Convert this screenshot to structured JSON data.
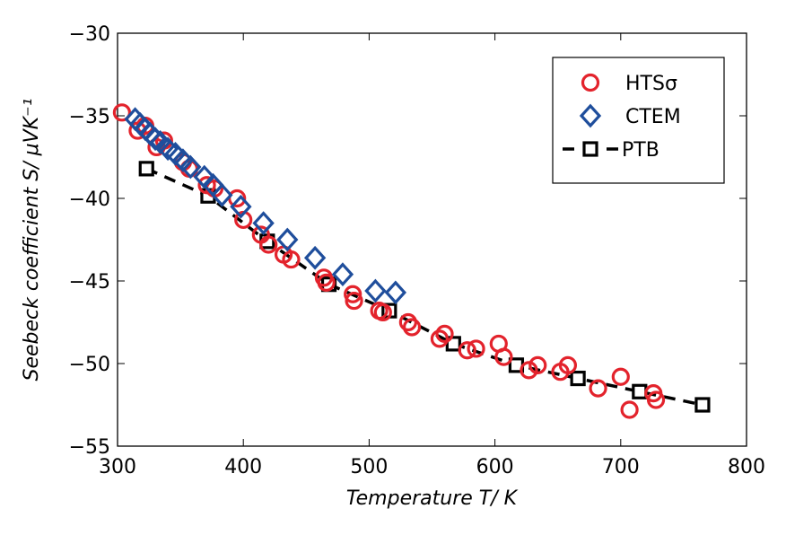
{
  "chart_data": {
    "type": "scatter",
    "title": "",
    "xlabel": "Temperature T/ K",
    "ylabel": "Seebeck coefficient S/ μVK⁻¹",
    "xlim": [
      300,
      800
    ],
    "ylim": [
      -55,
      -30
    ],
    "xticks": [
      300,
      400,
      500,
      600,
      700,
      800
    ],
    "yticks": [
      -30,
      -35,
      -40,
      -45,
      -50,
      -55
    ],
    "xtick_labels": [
      "300",
      "400",
      "500",
      "600",
      "700",
      "800"
    ],
    "ytick_labels": [
      "−30",
      "−35",
      "−40",
      "−45",
      "−50",
      "−55"
    ],
    "grid": false,
    "legend_position": "top-right",
    "series": [
      {
        "name": "HTSσ",
        "marker": "circle",
        "line": "none",
        "color": "#e3232c",
        "points": [
          [
            303.5,
            -34.8
          ],
          [
            316,
            -35.9
          ],
          [
            322,
            -35.6
          ],
          [
            331,
            -36.9
          ],
          [
            337,
            -36.5
          ],
          [
            352,
            -37.8
          ],
          [
            357,
            -38.2
          ],
          [
            371,
            -39.2
          ],
          [
            377,
            -39.4
          ],
          [
            395,
            -40.0
          ],
          [
            400,
            -41.3
          ],
          [
            414,
            -42.2
          ],
          [
            420,
            -42.8
          ],
          [
            432,
            -43.4
          ],
          [
            438,
            -43.7
          ],
          [
            464,
            -44.8
          ],
          [
            466,
            -45.1
          ],
          [
            487,
            -45.8
          ],
          [
            488,
            -46.2
          ],
          [
            508,
            -46.8
          ],
          [
            511,
            -46.9
          ],
          [
            531,
            -47.5
          ],
          [
            534,
            -47.8
          ],
          [
            556,
            -48.5
          ],
          [
            560,
            -48.2
          ],
          [
            578,
            -49.2
          ],
          [
            585,
            -49.1
          ],
          [
            603,
            -48.8
          ],
          [
            607,
            -49.6
          ],
          [
            627,
            -50.4
          ],
          [
            634,
            -50.1
          ],
          [
            652,
            -50.5
          ],
          [
            658,
            -50.1
          ],
          [
            682,
            -51.5
          ],
          [
            700,
            -50.8
          ],
          [
            707,
            -52.8
          ],
          [
            726,
            -51.8
          ],
          [
            728,
            -52.2
          ]
        ]
      },
      {
        "name": "CTEM",
        "marker": "diamond",
        "line": "none",
        "color": "#1f4e9c",
        "points": [
          [
            314,
            -35.2
          ],
          [
            318,
            -35.5
          ],
          [
            322,
            -35.8
          ],
          [
            326,
            -36.1
          ],
          [
            330,
            -36.4
          ],
          [
            334,
            -36.6
          ],
          [
            340,
            -37.0
          ],
          [
            346,
            -37.3
          ],
          [
            352,
            -37.7
          ],
          [
            358,
            -38.1
          ],
          [
            369,
            -38.7
          ],
          [
            376,
            -39.2
          ],
          [
            383,
            -39.8
          ],
          [
            398,
            -40.5
          ],
          [
            416,
            -41.5
          ],
          [
            435,
            -42.5
          ],
          [
            457,
            -43.6
          ],
          [
            479,
            -44.6
          ],
          [
            505,
            -45.6
          ],
          [
            521,
            -45.7
          ]
        ]
      },
      {
        "name": "PTB",
        "marker": "square",
        "line": "dashed",
        "color": "#000000",
        "points": [
          [
            323,
            -38.2
          ],
          [
            372,
            -39.85
          ],
          [
            419,
            -42.6
          ],
          [
            468,
            -45.2
          ],
          [
            516,
            -46.8
          ],
          [
            567,
            -48.8
          ],
          [
            617,
            -50.1
          ],
          [
            666,
            -50.9
          ],
          [
            715,
            -51.7
          ],
          [
            765,
            -52.5
          ]
        ]
      }
    ]
  }
}
